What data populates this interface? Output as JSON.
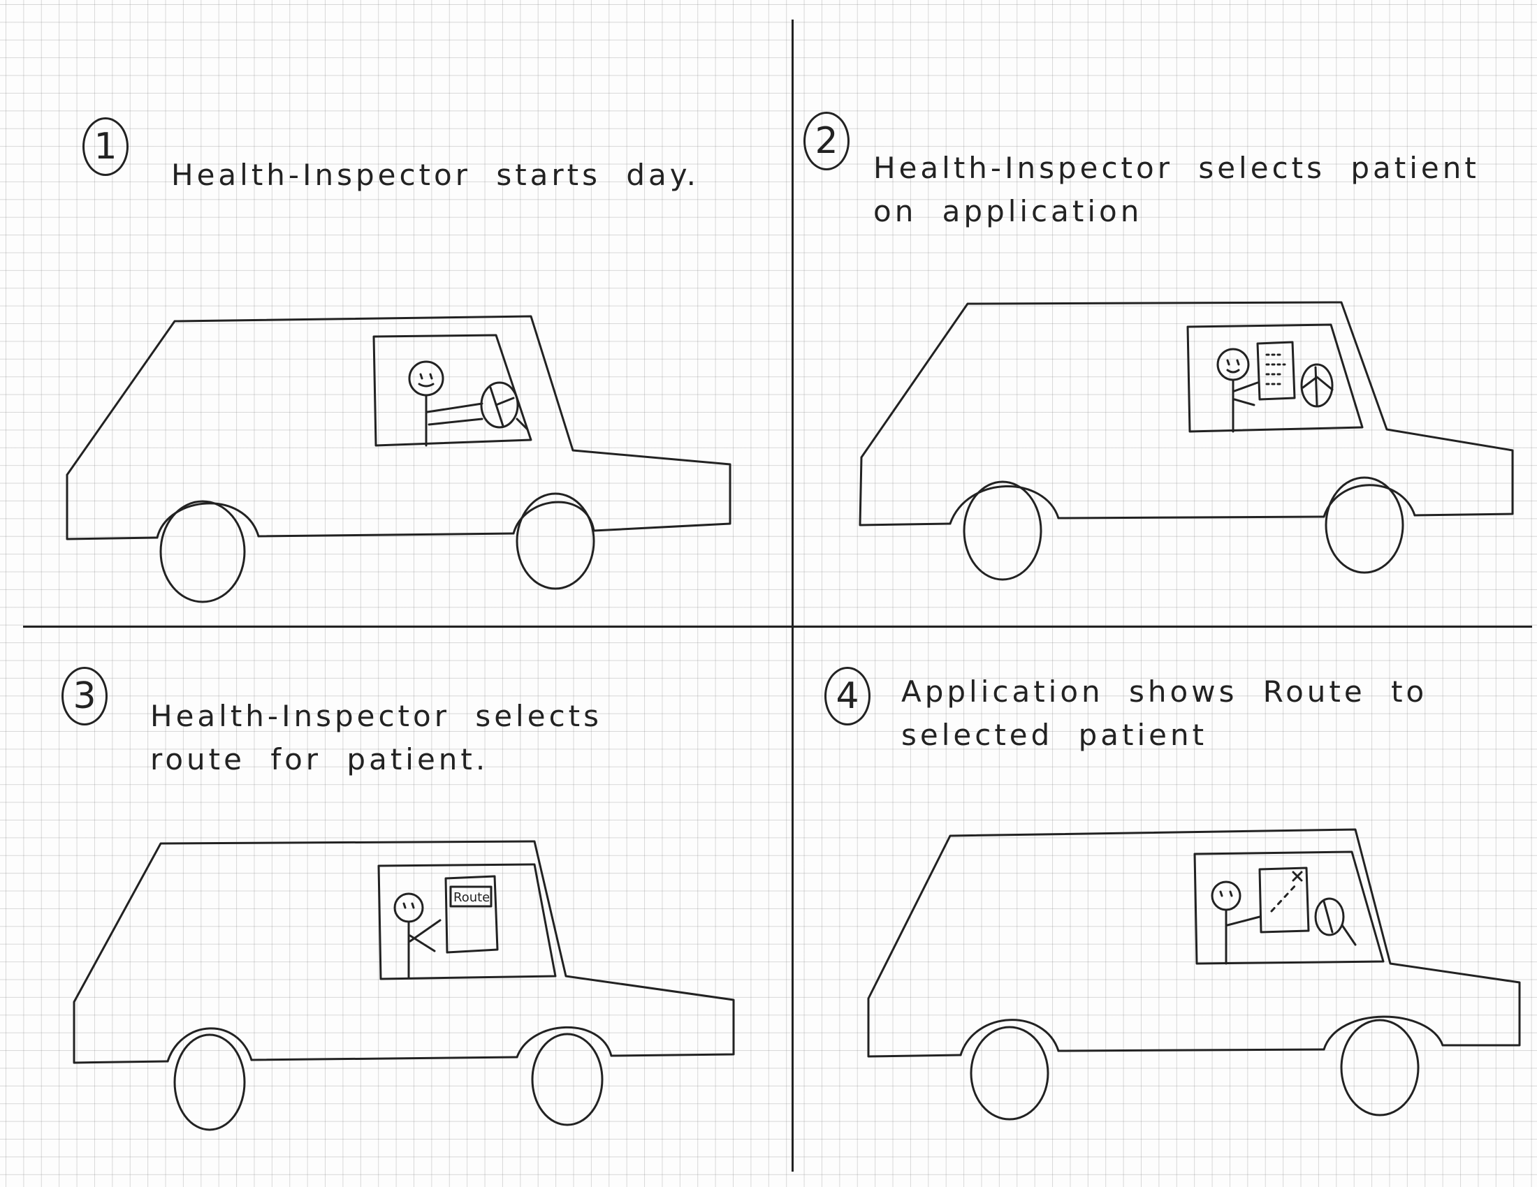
{
  "storyboard": {
    "panels": [
      {
        "number": "1",
        "caption": "Health-Inspector starts day.",
        "device": "none"
      },
      {
        "number": "2",
        "caption": "Health-Inspector selects patient on application",
        "device": "app-screen"
      },
      {
        "number": "3",
        "caption": "Health-Inspector selects route for patient.",
        "device": "route-screen",
        "screen_label": "Route"
      },
      {
        "number": "4",
        "caption": "Application shows Route to selected patient",
        "device": "map-screen"
      }
    ]
  }
}
